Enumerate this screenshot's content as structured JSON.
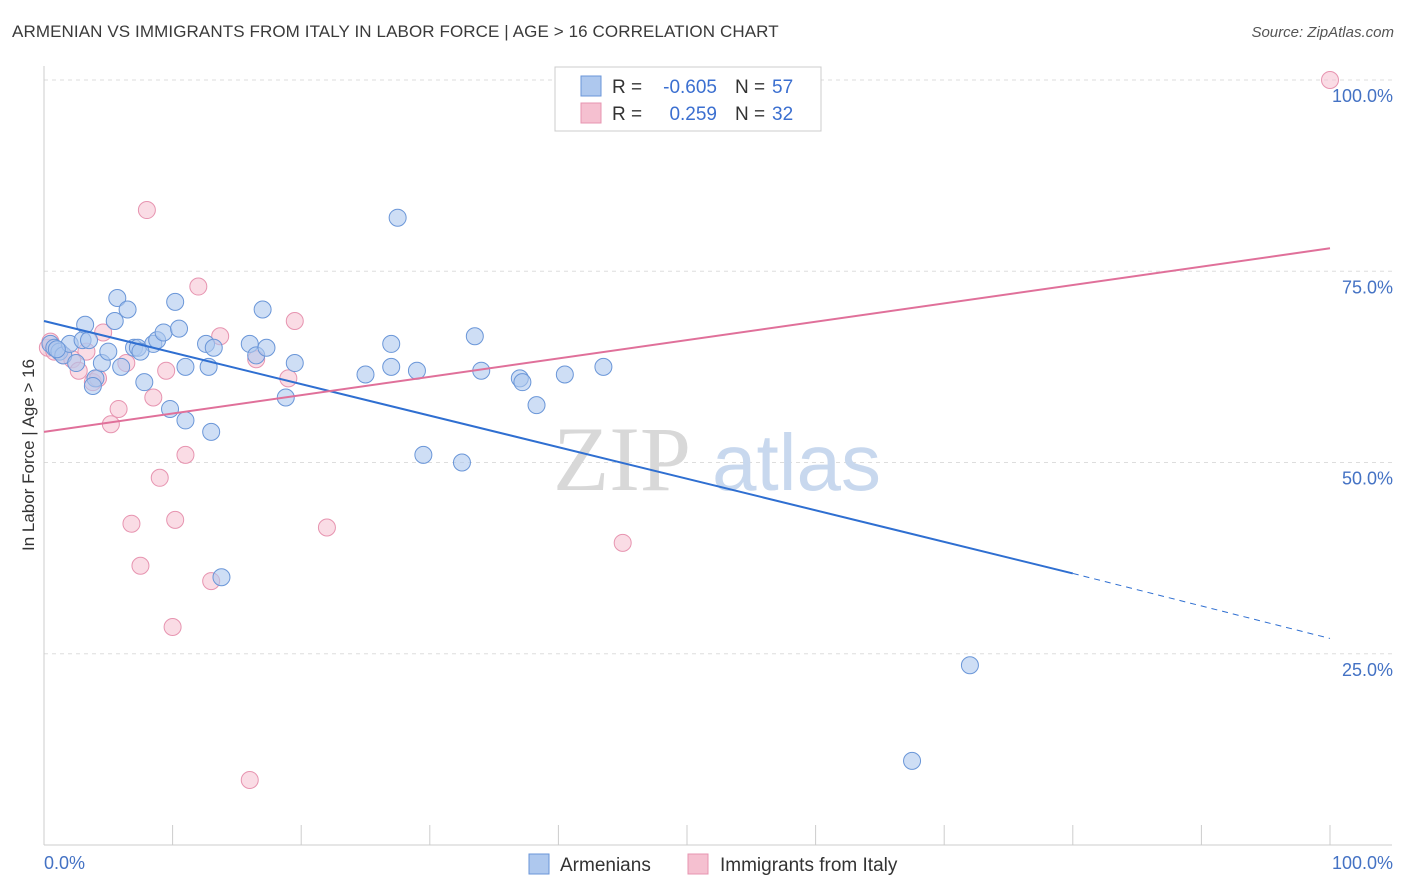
{
  "title": "ARMENIAN VS IMMIGRANTS FROM ITALY IN LABOR FORCE | AGE > 16 CORRELATION CHART",
  "source": "Source: ZipAtlas.com",
  "watermark": {
    "zip": "ZIP",
    "atlas": "atlas"
  },
  "colors": {
    "blue_fill": "#aec8ee",
    "blue_stroke": "#6a96d8",
    "blue_line": "#2f6fd1",
    "pink_fill": "#f5c0d0",
    "pink_stroke": "#e794b0",
    "pink_line": "#e0709a",
    "grid": "#dddddd",
    "tick_text": "#4472c4"
  },
  "legend": {
    "rows": [
      {
        "r_label": "R =",
        "r_value": "-0.605",
        "n_label": "N =",
        "n_value": "57"
      },
      {
        "r_label": "R =",
        "r_value": "0.259",
        "n_label": "N =",
        "n_value": "32"
      }
    ]
  },
  "chart_data": {
    "type": "scatter",
    "title": "ARMENIAN VS IMMIGRANTS FROM ITALY IN LABOR FORCE | AGE > 16 CORRELATION CHART",
    "xlabel": "",
    "ylabel": "In Labor Force | Age > 16",
    "xlim": [
      0,
      100
    ],
    "ylim": [
      0,
      100
    ],
    "x_tick_labels": [
      "0.0%",
      "100.0%"
    ],
    "y_tick_labels": [
      "25.0%",
      "50.0%",
      "75.0%",
      "100.0%"
    ],
    "y_ticks": [
      25,
      50,
      75,
      100
    ],
    "grid": true,
    "legend_position": "bottom",
    "series": [
      {
        "name": "Armenians",
        "color": "blue",
        "r": -0.605,
        "n": 57,
        "trend": {
          "x0": 0,
          "y0": 68.5,
          "x1": 80,
          "y1": 35.5,
          "dashed_to_x": 100,
          "dashed_to_y": 27.0
        },
        "points": [
          [
            0.5,
            65.5
          ],
          [
            0.8,
            65
          ],
          [
            1.2,
            64.5
          ],
          [
            1.5,
            64
          ],
          [
            2,
            65.5
          ],
          [
            2.5,
            63
          ],
          [
            3,
            66
          ],
          [
            3.2,
            68
          ],
          [
            3.5,
            66
          ],
          [
            4,
            61
          ],
          [
            4.5,
            63
          ],
          [
            5,
            64.5
          ],
          [
            5.5,
            68.5
          ],
          [
            5.7,
            71.5
          ],
          [
            6,
            62.5
          ],
          [
            6.5,
            70
          ],
          [
            7,
            65
          ],
          [
            7.3,
            65
          ],
          [
            7.8,
            60.5
          ],
          [
            8.5,
            65.5
          ],
          [
            8.8,
            66
          ],
          [
            9.3,
            67
          ],
          [
            9.8,
            57
          ],
          [
            10.2,
            71
          ],
          [
            10.5,
            67.5
          ],
          [
            11,
            55.5
          ],
          [
            12.8,
            62.5
          ],
          [
            12.6,
            65.5
          ],
          [
            13,
            54
          ],
          [
            13.2,
            65
          ],
          [
            13.8,
            35
          ],
          [
            16,
            65.5
          ],
          [
            16.5,
            64
          ],
          [
            17,
            70
          ],
          [
            17.3,
            65
          ],
          [
            18.8,
            58.5
          ],
          [
            19.5,
            63
          ],
          [
            25,
            61.5
          ],
          [
            27,
            65.5
          ],
          [
            27,
            62.5
          ],
          [
            27.5,
            82
          ],
          [
            29,
            62
          ],
          [
            29.5,
            51
          ],
          [
            32.5,
            50
          ],
          [
            33.5,
            66.5
          ],
          [
            34,
            62
          ],
          [
            37,
            61
          ],
          [
            37.2,
            60.5
          ],
          [
            38.3,
            57.5
          ],
          [
            40.5,
            61.5
          ],
          [
            43.5,
            62.5
          ],
          [
            1.0,
            64.8
          ],
          [
            3.8,
            60
          ],
          [
            7.5,
            64.5
          ],
          [
            11,
            62.5
          ],
          [
            72,
            23.5
          ],
          [
            67.5,
            11
          ]
        ]
      },
      {
        "name": "Immigrants from Italy",
        "color": "pink",
        "r": 0.259,
        "n": 32,
        "trend": {
          "x0": 0,
          "y0": 54.0,
          "x1": 100,
          "y1": 78.0
        },
        "points": [
          [
            0.3,
            65
          ],
          [
            0.8,
            64.5
          ],
          [
            1.5,
            64
          ],
          [
            2.2,
            63.5
          ],
          [
            2.7,
            62
          ],
          [
            3.3,
            64.5
          ],
          [
            3.8,
            60.5
          ],
          [
            4.2,
            61
          ],
          [
            4.6,
            67
          ],
          [
            5.2,
            55
          ],
          [
            5.8,
            57
          ],
          [
            6.4,
            63
          ],
          [
            6.8,
            42
          ],
          [
            7.5,
            36.5
          ],
          [
            8.0,
            83
          ],
          [
            8.5,
            58.5
          ],
          [
            9.0,
            48
          ],
          [
            9.5,
            62
          ],
          [
            10.0,
            28.5
          ],
          [
            10.2,
            42.5
          ],
          [
            11.0,
            51
          ],
          [
            12.0,
            73
          ],
          [
            13.0,
            34.5
          ],
          [
            13.7,
            66.5
          ],
          [
            16.5,
            63.5
          ],
          [
            19.0,
            61
          ],
          [
            19.5,
            68.5
          ],
          [
            16.0,
            8.5
          ],
          [
            22.0,
            41.5
          ],
          [
            45,
            39.5
          ],
          [
            100,
            100
          ],
          [
            0.5,
            65.8
          ]
        ]
      }
    ]
  }
}
